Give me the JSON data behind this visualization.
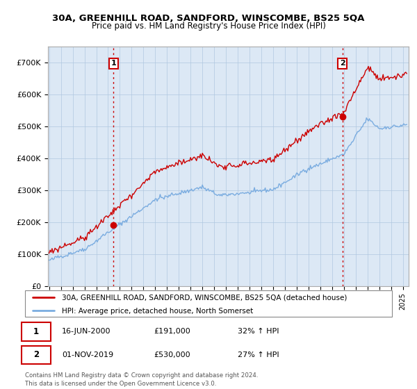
{
  "title": "30A, GREENHILL ROAD, SANDFORD, WINSCOMBE, BS25 5QA",
  "subtitle": "Price paid vs. HM Land Registry's House Price Index (HPI)",
  "ylabel_ticks": [
    "£0",
    "£100K",
    "£200K",
    "£300K",
    "£400K",
    "£500K",
    "£600K",
    "£700K"
  ],
  "ylim": [
    0,
    750000
  ],
  "xlim_start": 1994.9,
  "xlim_end": 2025.5,
  "legend_property_label": "30A, GREENHILL ROAD, SANDFORD, WINSCOMBE, BS25 5QA (detached house)",
  "legend_hpi_label": "HPI: Average price, detached house, North Somerset",
  "sale1_date": "16-JUN-2000",
  "sale1_price": "£191,000",
  "sale1_hpi": "32% ↑ HPI",
  "sale2_date": "01-NOV-2019",
  "sale2_price": "£530,000",
  "sale2_hpi": "27% ↑ HPI",
  "footnote": "Contains HM Land Registry data © Crown copyright and database right 2024.\nThis data is licensed under the Open Government Licence v3.0.",
  "property_color": "#cc0000",
  "hpi_color": "#7aace0",
  "vline_color": "#cc0000",
  "background_color": "#ffffff",
  "plot_bg_color": "#dce8f5",
  "grid_color": "#b0c8e0"
}
